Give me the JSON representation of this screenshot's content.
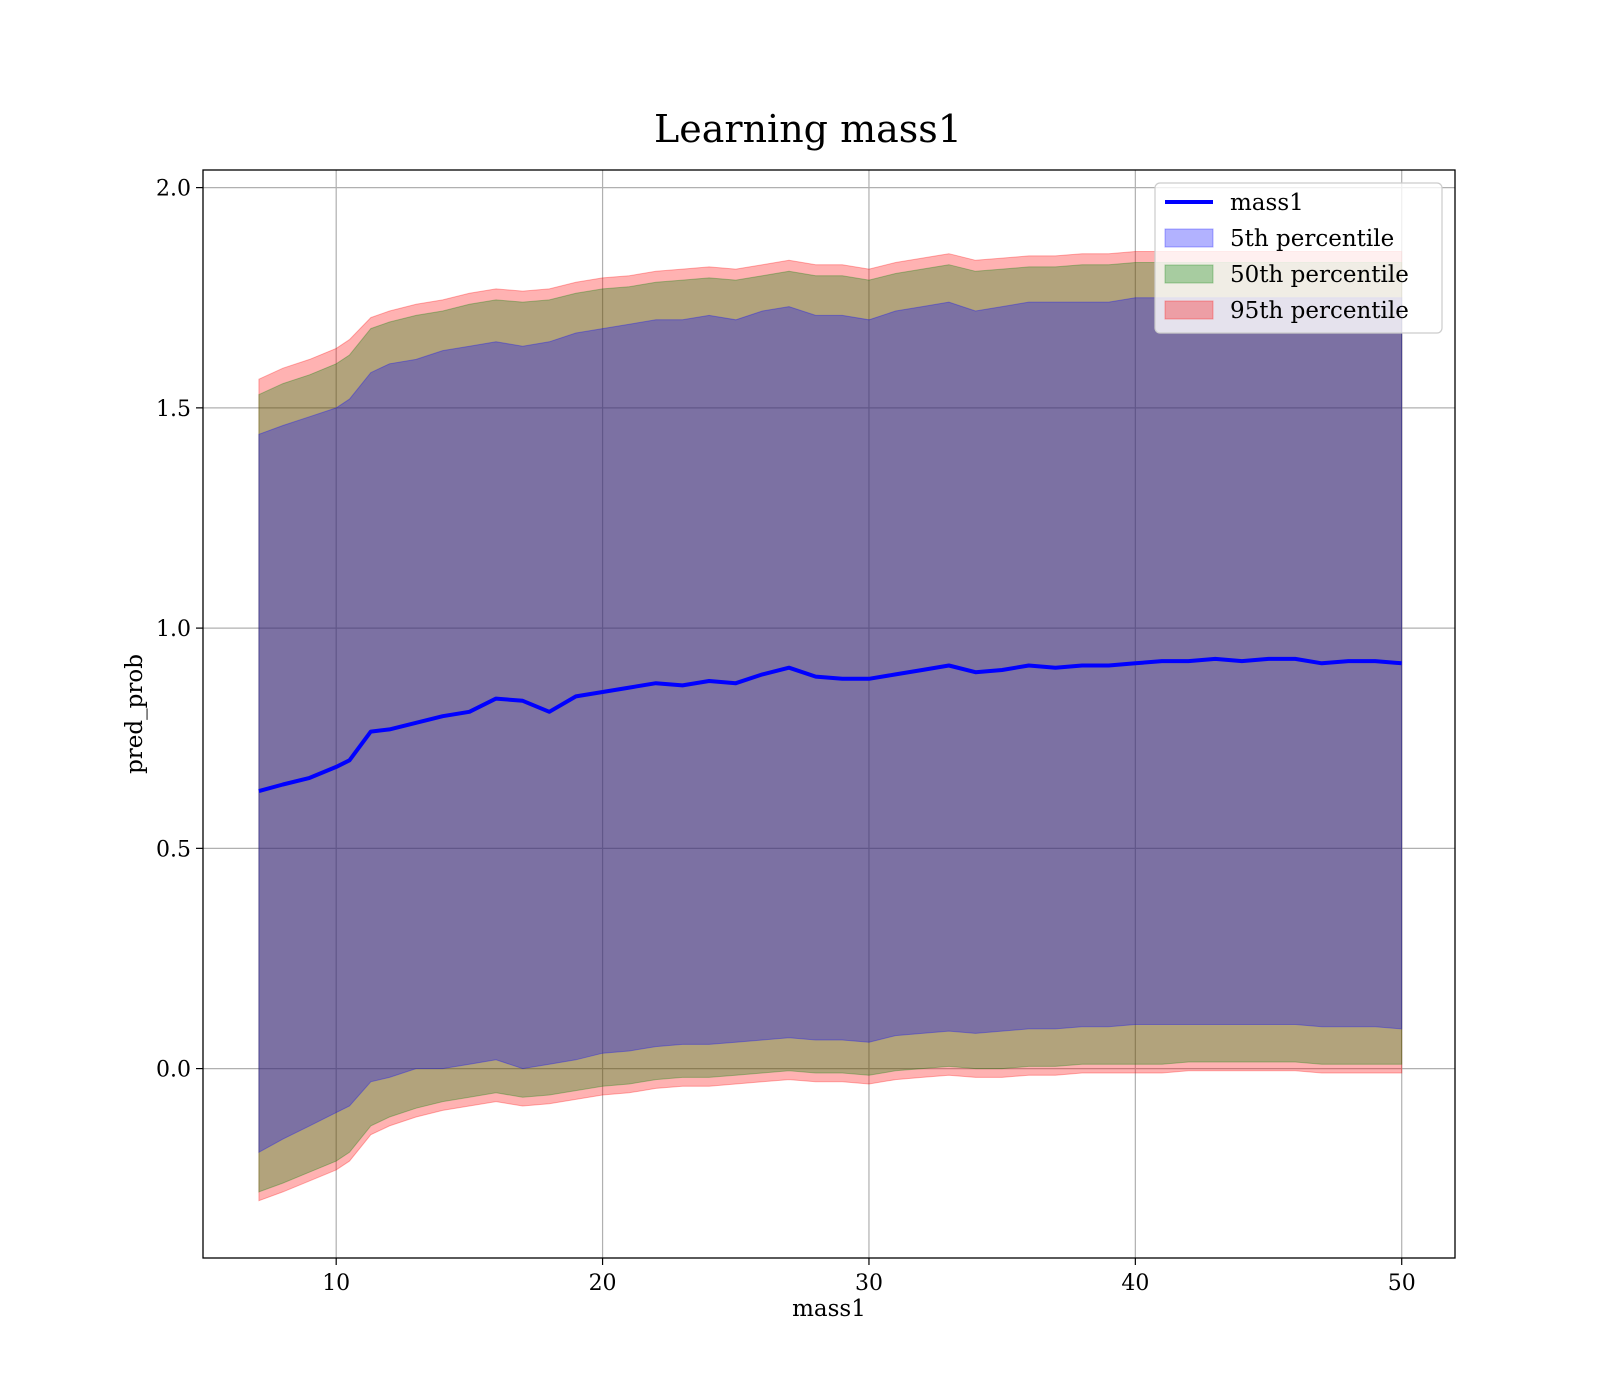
{
  "chart_data": {
    "type": "area",
    "title": "Learning mass1",
    "xlabel": "mass1",
    "ylabel": "pred_prob",
    "xlim": [
      5,
      52
    ],
    "ylim": [
      -0.43,
      2.04
    ],
    "x_ticks": [
      10,
      20,
      30,
      40,
      50
    ],
    "y_ticks": [
      0.0,
      0.5,
      1.0,
      1.5,
      2.0
    ],
    "x_tick_labels": [
      "10",
      "20",
      "30",
      "40",
      "50"
    ],
    "y_tick_labels": [
      "0.0",
      "0.5",
      "1.0",
      "1.5",
      "2.0"
    ],
    "grid": true,
    "legend_position": "top-right",
    "x": [
      7.1,
      8,
      9,
      10,
      10.5,
      11.3,
      12,
      13,
      14,
      15,
      16,
      17,
      18,
      19,
      20,
      21,
      22,
      23,
      24,
      25,
      26,
      27,
      28,
      29,
      30,
      31,
      32,
      33,
      34,
      35,
      36,
      37,
      38,
      39,
      40,
      41,
      42,
      43,
      44,
      45,
      46,
      47,
      48,
      49,
      50
    ],
    "series": [
      {
        "name": "mass1",
        "kind": "line",
        "color": "#0000ff",
        "values": [
          0.63,
          0.645,
          0.66,
          0.685,
          0.7,
          0.765,
          0.77,
          0.785,
          0.8,
          0.81,
          0.84,
          0.835,
          0.81,
          0.845,
          0.855,
          0.865,
          0.875,
          0.87,
          0.88,
          0.875,
          0.895,
          0.91,
          0.89,
          0.885,
          0.885,
          0.895,
          0.905,
          0.915,
          0.9,
          0.905,
          0.915,
          0.91,
          0.915,
          0.915,
          0.92,
          0.925,
          0.925,
          0.93,
          0.925,
          0.93,
          0.93,
          0.92,
          0.925,
          0.925,
          0.92
        ]
      },
      {
        "name": "5th percentile",
        "kind": "band",
        "color": "#0000ff",
        "lower": [
          -0.19,
          -0.16,
          -0.13,
          -0.1,
          -0.085,
          -0.03,
          -0.02,
          0.0,
          0.0,
          0.01,
          0.02,
          0.0,
          0.01,
          0.02,
          0.035,
          0.04,
          0.05,
          0.055,
          0.055,
          0.06,
          0.065,
          0.07,
          0.065,
          0.065,
          0.06,
          0.075,
          0.08,
          0.085,
          0.08,
          0.085,
          0.09,
          0.09,
          0.095,
          0.095,
          0.1,
          0.1,
          0.1,
          0.1,
          0.1,
          0.1,
          0.1,
          0.095,
          0.095,
          0.095,
          0.09
        ],
        "upper": [
          1.44,
          1.46,
          1.48,
          1.5,
          1.52,
          1.58,
          1.6,
          1.61,
          1.63,
          1.64,
          1.65,
          1.64,
          1.65,
          1.67,
          1.68,
          1.69,
          1.7,
          1.7,
          1.71,
          1.7,
          1.72,
          1.73,
          1.71,
          1.71,
          1.7,
          1.72,
          1.73,
          1.74,
          1.72,
          1.73,
          1.74,
          1.74,
          1.74,
          1.74,
          1.75,
          1.75,
          1.75,
          1.75,
          1.75,
          1.75,
          1.75,
          1.75,
          1.75,
          1.75,
          1.75
        ]
      },
      {
        "name": "50th percentile",
        "kind": "band",
        "color": "#008000",
        "lower": [
          -0.28,
          -0.26,
          -0.235,
          -0.21,
          -0.19,
          -0.13,
          -0.11,
          -0.09,
          -0.075,
          -0.065,
          -0.055,
          -0.065,
          -0.06,
          -0.05,
          -0.04,
          -0.035,
          -0.025,
          -0.02,
          -0.02,
          -0.015,
          -0.01,
          -0.005,
          -0.01,
          -0.01,
          -0.015,
          -0.005,
          0.0,
          0.005,
          0.0,
          0.0,
          0.005,
          0.005,
          0.01,
          0.01,
          0.01,
          0.01,
          0.015,
          0.015,
          0.015,
          0.015,
          0.015,
          0.01,
          0.01,
          0.01,
          0.01
        ],
        "upper": [
          1.53,
          1.555,
          1.575,
          1.6,
          1.62,
          1.68,
          1.695,
          1.71,
          1.72,
          1.735,
          1.745,
          1.74,
          1.745,
          1.76,
          1.77,
          1.775,
          1.785,
          1.79,
          1.795,
          1.79,
          1.8,
          1.81,
          1.8,
          1.8,
          1.79,
          1.805,
          1.815,
          1.825,
          1.81,
          1.815,
          1.82,
          1.82,
          1.825,
          1.825,
          1.83,
          1.83,
          1.83,
          1.83,
          1.83,
          1.83,
          1.83,
          1.83,
          1.83,
          1.83,
          1.83
        ]
      },
      {
        "name": "95th percentile",
        "kind": "band",
        "color": "#ff0000",
        "lower": [
          -0.3,
          -0.28,
          -0.255,
          -0.23,
          -0.21,
          -0.15,
          -0.13,
          -0.11,
          -0.095,
          -0.085,
          -0.075,
          -0.085,
          -0.08,
          -0.07,
          -0.06,
          -0.055,
          -0.045,
          -0.04,
          -0.04,
          -0.035,
          -0.03,
          -0.025,
          -0.03,
          -0.03,
          -0.035,
          -0.025,
          -0.02,
          -0.015,
          -0.02,
          -0.02,
          -0.015,
          -0.015,
          -0.01,
          -0.01,
          -0.01,
          -0.01,
          -0.005,
          -0.005,
          -0.005,
          -0.005,
          -0.005,
          -0.01,
          -0.01,
          -0.01,
          -0.01
        ],
        "upper": [
          1.565,
          1.59,
          1.61,
          1.635,
          1.655,
          1.705,
          1.72,
          1.735,
          1.745,
          1.76,
          1.77,
          1.765,
          1.77,
          1.785,
          1.795,
          1.8,
          1.81,
          1.815,
          1.82,
          1.815,
          1.825,
          1.835,
          1.825,
          1.825,
          1.815,
          1.83,
          1.84,
          1.85,
          1.835,
          1.84,
          1.845,
          1.845,
          1.85,
          1.85,
          1.855,
          1.855,
          1.855,
          1.855,
          1.855,
          1.855,
          1.855,
          1.855,
          1.855,
          1.855,
          1.855
        ]
      }
    ]
  }
}
